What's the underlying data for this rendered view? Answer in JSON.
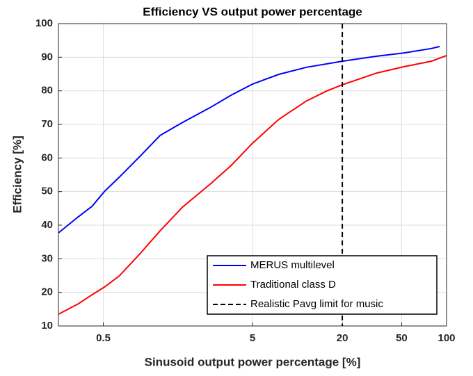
{
  "chart_data": {
    "type": "line",
    "title": "Efficiency VS output power percentage",
    "xlabel": "Sinusoid output power percentage [%]",
    "ylabel": "Efficiency [%]",
    "xscale": "log",
    "xlim": [
      0.25,
      100
    ],
    "xticks": [
      0.5,
      5,
      20,
      50,
      100
    ],
    "ylim": [
      10,
      100
    ],
    "yticks": [
      10,
      20,
      30,
      40,
      50,
      60,
      70,
      80,
      90,
      100
    ],
    "grid": true,
    "legend": "lower right",
    "series": [
      {
        "name": "MERUS multilevel",
        "color": "#0000ff",
        "x": [
          0.25,
          0.34,
          0.42,
          0.51,
          0.64,
          0.88,
          1.2,
          1.7,
          2.6,
          3.6,
          5,
          7.5,
          11.5,
          20,
          34,
          52,
          79,
          90
        ],
        "values": [
          37.7,
          42.5,
          45.6,
          50.1,
          54.3,
          60.5,
          66.7,
          70.6,
          75,
          78.7,
          82,
          84.9,
          87,
          88.8,
          90.3,
          91.3,
          92.6,
          93.2
        ]
      },
      {
        "name": "Traditional class D",
        "color": "#ff0000",
        "x": [
          0.25,
          0.34,
          0.42,
          0.51,
          0.64,
          0.88,
          1.2,
          1.7,
          2.6,
          3.6,
          5,
          7.5,
          11.5,
          16,
          20,
          34,
          52,
          79,
          100
        ],
        "values": [
          13.5,
          16.6,
          19.3,
          21.6,
          24.9,
          31.5,
          38.3,
          45.4,
          52.2,
          57.8,
          64.4,
          71.5,
          77,
          80.1,
          81.8,
          85.3,
          87.2,
          88.8,
          90.5
        ]
      }
    ],
    "vline": {
      "x": 20,
      "name": "Realistic Pavg limit for music",
      "color": "#000000"
    }
  }
}
